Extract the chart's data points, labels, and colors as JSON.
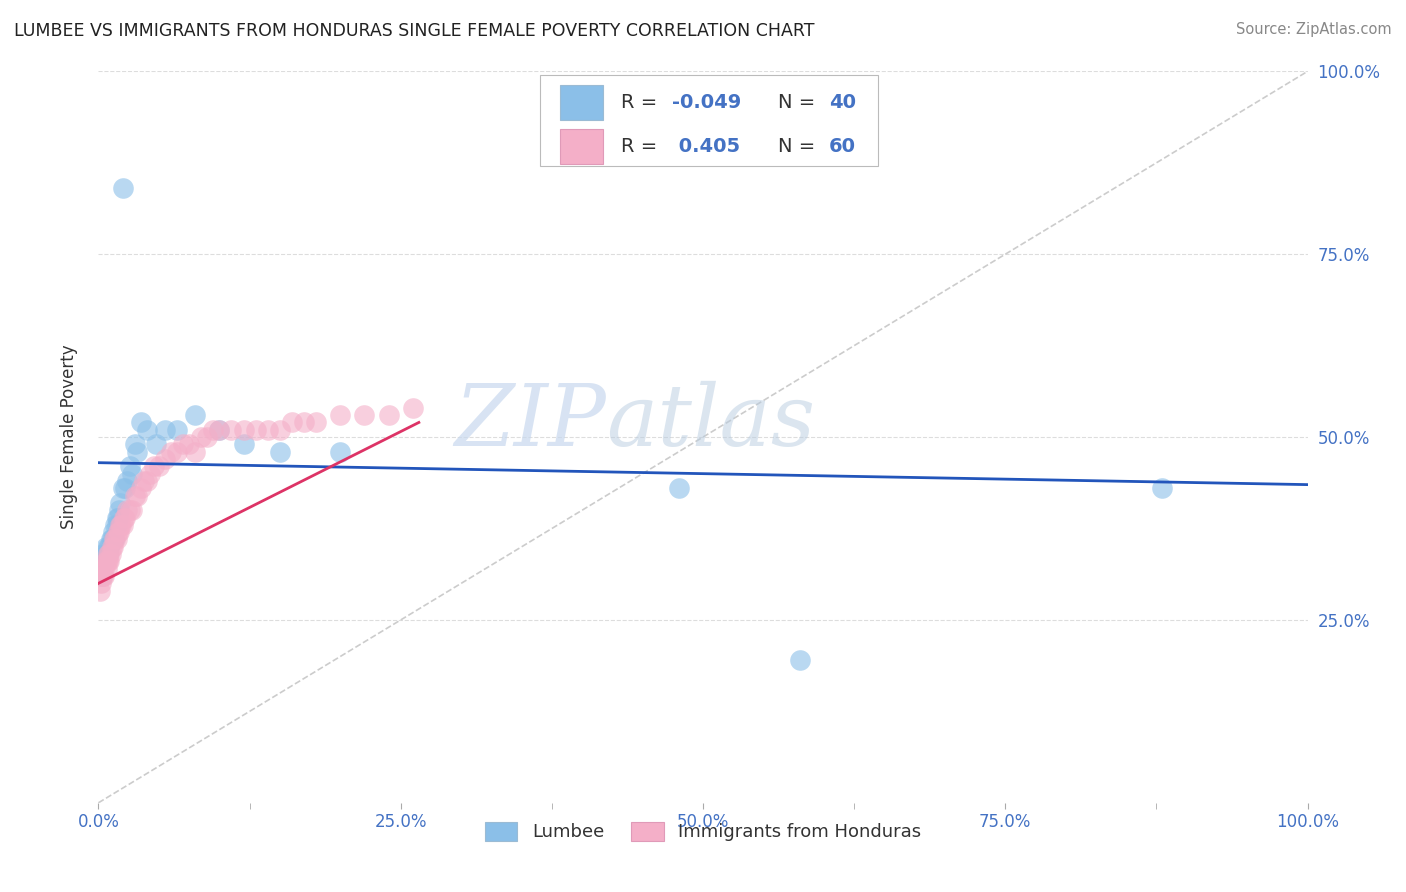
{
  "title": "LUMBEE VS IMMIGRANTS FROM HONDURAS SINGLE FEMALE POVERTY CORRELATION CHART",
  "source": "Source: ZipAtlas.com",
  "ylabel": "Single Female Poverty",
  "xlim": [
    0.0,
    1.0
  ],
  "ylim": [
    0.0,
    1.0
  ],
  "xtick_labels": [
    "0.0%",
    "",
    "25.0%",
    "",
    "50.0%",
    "",
    "75.0%",
    "",
    "100.0%"
  ],
  "xtick_vals": [
    0.0,
    0.125,
    0.25,
    0.375,
    0.5,
    0.625,
    0.75,
    0.875,
    1.0
  ],
  "ytick_labels": [
    "25.0%",
    "50.0%",
    "75.0%",
    "100.0%"
  ],
  "ytick_vals": [
    0.25,
    0.5,
    0.75,
    1.0
  ],
  "color_lumbee": "#8bbfe8",
  "color_honduras": "#f4afc8",
  "color_line_lumbee": "#2255bb",
  "color_line_honduras": "#dd3366",
  "color_diag": "#cccccc",
  "watermark_zip": "ZIP",
  "watermark_atlas": "atlas",
  "background_color": "#ffffff",
  "grid_color": "#dddddd",
  "lumbee_x": [
    0.003,
    0.004,
    0.005,
    0.006,
    0.006,
    0.007,
    0.008,
    0.008,
    0.009,
    0.01,
    0.011,
    0.012,
    0.013,
    0.014,
    0.015,
    0.015,
    0.016,
    0.017,
    0.018,
    0.02,
    0.022,
    0.024,
    0.026,
    0.028,
    0.03,
    0.032,
    0.035,
    0.04,
    0.048,
    0.055,
    0.065,
    0.08,
    0.1,
    0.12,
    0.15,
    0.2,
    0.48,
    0.58,
    0.88,
    0.02
  ],
  "lumbee_y": [
    0.31,
    0.34,
    0.33,
    0.34,
    0.35,
    0.34,
    0.35,
    0.34,
    0.35,
    0.36,
    0.36,
    0.37,
    0.36,
    0.38,
    0.38,
    0.39,
    0.39,
    0.4,
    0.41,
    0.43,
    0.43,
    0.44,
    0.46,
    0.45,
    0.49,
    0.48,
    0.52,
    0.51,
    0.49,
    0.51,
    0.51,
    0.53,
    0.51,
    0.49,
    0.48,
    0.48,
    0.43,
    0.195,
    0.43,
    0.84
  ],
  "honduras_x": [
    0.001,
    0.002,
    0.003,
    0.003,
    0.004,
    0.005,
    0.005,
    0.006,
    0.007,
    0.007,
    0.008,
    0.008,
    0.009,
    0.009,
    0.01,
    0.011,
    0.012,
    0.013,
    0.014,
    0.015,
    0.016,
    0.017,
    0.018,
    0.019,
    0.02,
    0.021,
    0.022,
    0.024,
    0.026,
    0.028,
    0.03,
    0.032,
    0.035,
    0.038,
    0.04,
    0.043,
    0.046,
    0.05,
    0.055,
    0.06,
    0.065,
    0.07,
    0.075,
    0.08,
    0.085,
    0.09,
    0.095,
    0.1,
    0.11,
    0.12,
    0.13,
    0.14,
    0.15,
    0.16,
    0.17,
    0.18,
    0.2,
    0.22,
    0.24,
    0.26
  ],
  "honduras_y": [
    0.29,
    0.3,
    0.31,
    0.32,
    0.31,
    0.32,
    0.31,
    0.33,
    0.32,
    0.33,
    0.33,
    0.34,
    0.33,
    0.34,
    0.34,
    0.35,
    0.35,
    0.36,
    0.36,
    0.36,
    0.37,
    0.37,
    0.38,
    0.38,
    0.38,
    0.39,
    0.39,
    0.4,
    0.4,
    0.4,
    0.42,
    0.42,
    0.43,
    0.44,
    0.44,
    0.45,
    0.46,
    0.46,
    0.47,
    0.48,
    0.48,
    0.49,
    0.49,
    0.48,
    0.5,
    0.5,
    0.51,
    0.51,
    0.51,
    0.51,
    0.51,
    0.51,
    0.51,
    0.52,
    0.52,
    0.52,
    0.53,
    0.53,
    0.53,
    0.54
  ],
  "lumbee_line_x0": 0.0,
  "lumbee_line_x1": 1.0,
  "lumbee_line_y0": 0.465,
  "lumbee_line_y1": 0.435,
  "honduras_line_x0": 0.0,
  "honduras_line_x1": 0.265,
  "honduras_line_y0": 0.3,
  "honduras_line_y1": 0.52
}
